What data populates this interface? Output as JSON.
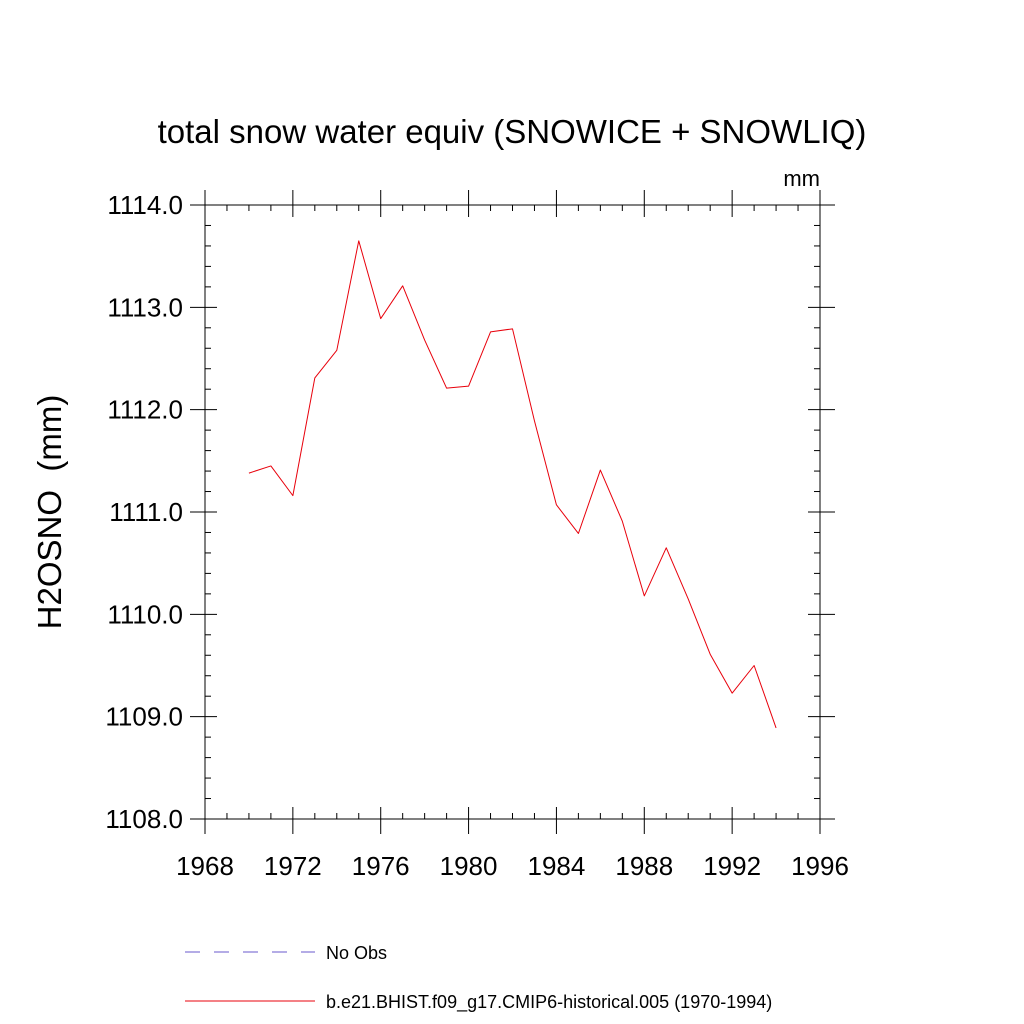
{
  "chart_data": {
    "type": "line",
    "title": "total snow water equiv (SNOWICE + SNOWLIQ)",
    "units_label": "mm",
    "ylabel": "H2OSNO  (mm)",
    "xlabel": "",
    "xlim": [
      1968,
      1996
    ],
    "ylim": [
      1108.0,
      1114.0
    ],
    "x_ticks": [
      1968,
      1972,
      1976,
      1980,
      1984,
      1988,
      1992,
      1996
    ],
    "x_tick_labels": [
      "1968",
      "1972",
      "1976",
      "1980",
      "1984",
      "1988",
      "1992",
      "1996"
    ],
    "y_ticks": [
      1108.0,
      1109.0,
      1110.0,
      1111.0,
      1112.0,
      1113.0,
      1114.0
    ],
    "y_tick_labels": [
      "1108.0",
      "1109.0",
      "1110.0",
      "1111.0",
      "1112.0",
      "1113.0",
      "1114.0"
    ],
    "x_minor_step": 1,
    "y_minor_step": 0.2,
    "grid": false,
    "legend_position": "bottom",
    "series": [
      {
        "name": "b.e21.BHIST.f09_g17.CMIP6-historical.005 (1970-1994)",
        "color": "#e8000b",
        "style": "solid",
        "x": [
          1970,
          1971,
          1972,
          1973,
          1974,
          1975,
          1976,
          1977,
          1978,
          1979,
          1980,
          1981,
          1982,
          1983,
          1984,
          1985,
          1986,
          1987,
          1988,
          1989,
          1990,
          1991,
          1992,
          1993,
          1994
        ],
        "y": [
          1111.38,
          1111.45,
          1111.16,
          1112.31,
          1112.58,
          1113.65,
          1112.89,
          1113.21,
          1112.68,
          1112.21,
          1112.23,
          1112.76,
          1112.79,
          1111.89,
          1111.07,
          1110.79,
          1111.41,
          1110.91,
          1110.18,
          1110.65,
          1110.15,
          1109.61,
          1109.23,
          1109.5,
          1108.89
        ]
      }
    ],
    "legend": [
      {
        "label": "No Obs",
        "color": "#6a5acd",
        "style": "dashed"
      },
      {
        "label": "b.e21.BHIST.f09_g17.CMIP6-historical.005 (1970-1994)",
        "color": "#e8000b",
        "style": "solid"
      }
    ]
  }
}
